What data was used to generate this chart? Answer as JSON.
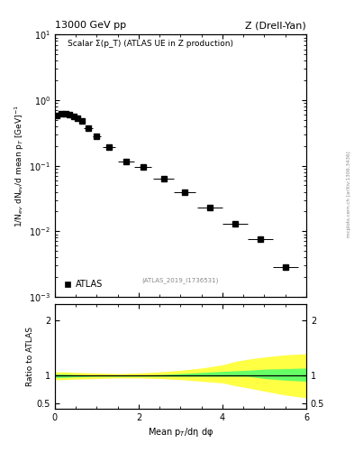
{
  "title_left": "13000 GeV pp",
  "title_right": "Z (Drell-Yan)",
  "main_label": "Scalar Σ(p_T) (ATLAS UE in Z production)",
  "atlas_label": "ATLAS",
  "watermark": "(ATLAS_2019_I1736531)",
  "side_label": "mcplots.cern.ch [arXiv:1306.3436]",
  "ylabel_main": "1/N$_{ev}$ dN$_{ev}$/d mean p$_T$ [GeV]$^{-1}$",
  "ylabel_ratio": "Ratio to ATLAS",
  "xlabel": "Mean p$_T$/dη dφ",
  "data_x": [
    0.05,
    0.15,
    0.25,
    0.35,
    0.45,
    0.55,
    0.65,
    0.8,
    1.0,
    1.3,
    1.7,
    2.1,
    2.6,
    3.1,
    3.7,
    4.3,
    4.9,
    5.5
  ],
  "data_y": [
    0.58,
    0.62,
    0.62,
    0.6,
    0.57,
    0.53,
    0.48,
    0.38,
    0.28,
    0.19,
    0.115,
    0.095,
    0.063,
    0.04,
    0.023,
    0.013,
    0.0075,
    0.0028
  ],
  "data_xerr": [
    0.05,
    0.05,
    0.05,
    0.05,
    0.05,
    0.05,
    0.05,
    0.1,
    0.1,
    0.15,
    0.2,
    0.2,
    0.25,
    0.25,
    0.3,
    0.3,
    0.3,
    0.3
  ],
  "data_color": "#000000",
  "marker": "s",
  "marker_size": 4,
  "ylim_main": [
    0.001,
    10
  ],
  "xlim": [
    0,
    6
  ],
  "ratio_band_x": [
    0.0,
    0.2,
    0.5,
    1.0,
    1.5,
    2.0,
    2.5,
    3.0,
    3.5,
    4.0,
    4.3,
    4.6,
    5.0,
    5.5,
    6.0
  ],
  "ratio_green_low": [
    0.97,
    0.97,
    0.98,
    0.99,
    0.99,
    0.99,
    0.99,
    0.99,
    0.99,
    0.99,
    0.99,
    0.99,
    0.95,
    0.92,
    0.9
  ],
  "ratio_green_high": [
    1.03,
    1.03,
    1.02,
    1.01,
    1.01,
    1.01,
    1.02,
    1.04,
    1.06,
    1.08,
    1.09,
    1.1,
    1.12,
    1.13,
    1.14
  ],
  "ratio_yellow_low": [
    0.93,
    0.93,
    0.94,
    0.95,
    0.96,
    0.96,
    0.95,
    0.93,
    0.9,
    0.87,
    0.82,
    0.78,
    0.72,
    0.65,
    0.6
  ],
  "ratio_yellow_high": [
    1.07,
    1.07,
    1.06,
    1.05,
    1.04,
    1.05,
    1.07,
    1.1,
    1.14,
    1.2,
    1.26,
    1.3,
    1.34,
    1.38,
    1.4
  ],
  "ylim_ratio": [
    0.4,
    2.3
  ],
  "ratio_yticks": [
    0.5,
    1.0,
    2.0
  ],
  "ratio_yticklabels": [
    "0.5",
    "1",
    "2"
  ],
  "green_color": "#66ff66",
  "yellow_color": "#ffff44",
  "line_color": "#000000",
  "bg_color": "#ffffff"
}
